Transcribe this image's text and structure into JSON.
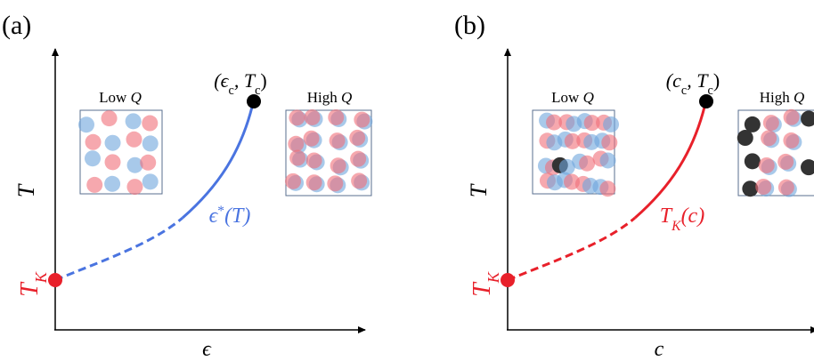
{
  "panels": [
    {
      "label": "(a)",
      "y_axis": "T",
      "x_axis": "ϵ",
      "tk_label": [
        "T",
        "K"
      ],
      "point_label": [
        "(ϵ",
        "c",
        ", T",
        "c",
        ")"
      ],
      "curve_label": [
        "ϵ",
        "*",
        "(T)"
      ],
      "insets": [
        [
          "Low ",
          "Q"
        ],
        [
          "High ",
          "Q"
        ]
      ]
    },
    {
      "label": "(b)",
      "y_axis": "T",
      "x_axis": "c",
      "tk_label": [
        "T",
        "K"
      ],
      "point_label": [
        "(c",
        "c",
        ", T",
        "c",
        ")"
      ],
      "curve_label": [
        "T",
        "K",
        "(c)"
      ],
      "insets": [
        [
          "Low ",
          "Q"
        ],
        [
          "High ",
          "Q"
        ]
      ]
    }
  ]
}
